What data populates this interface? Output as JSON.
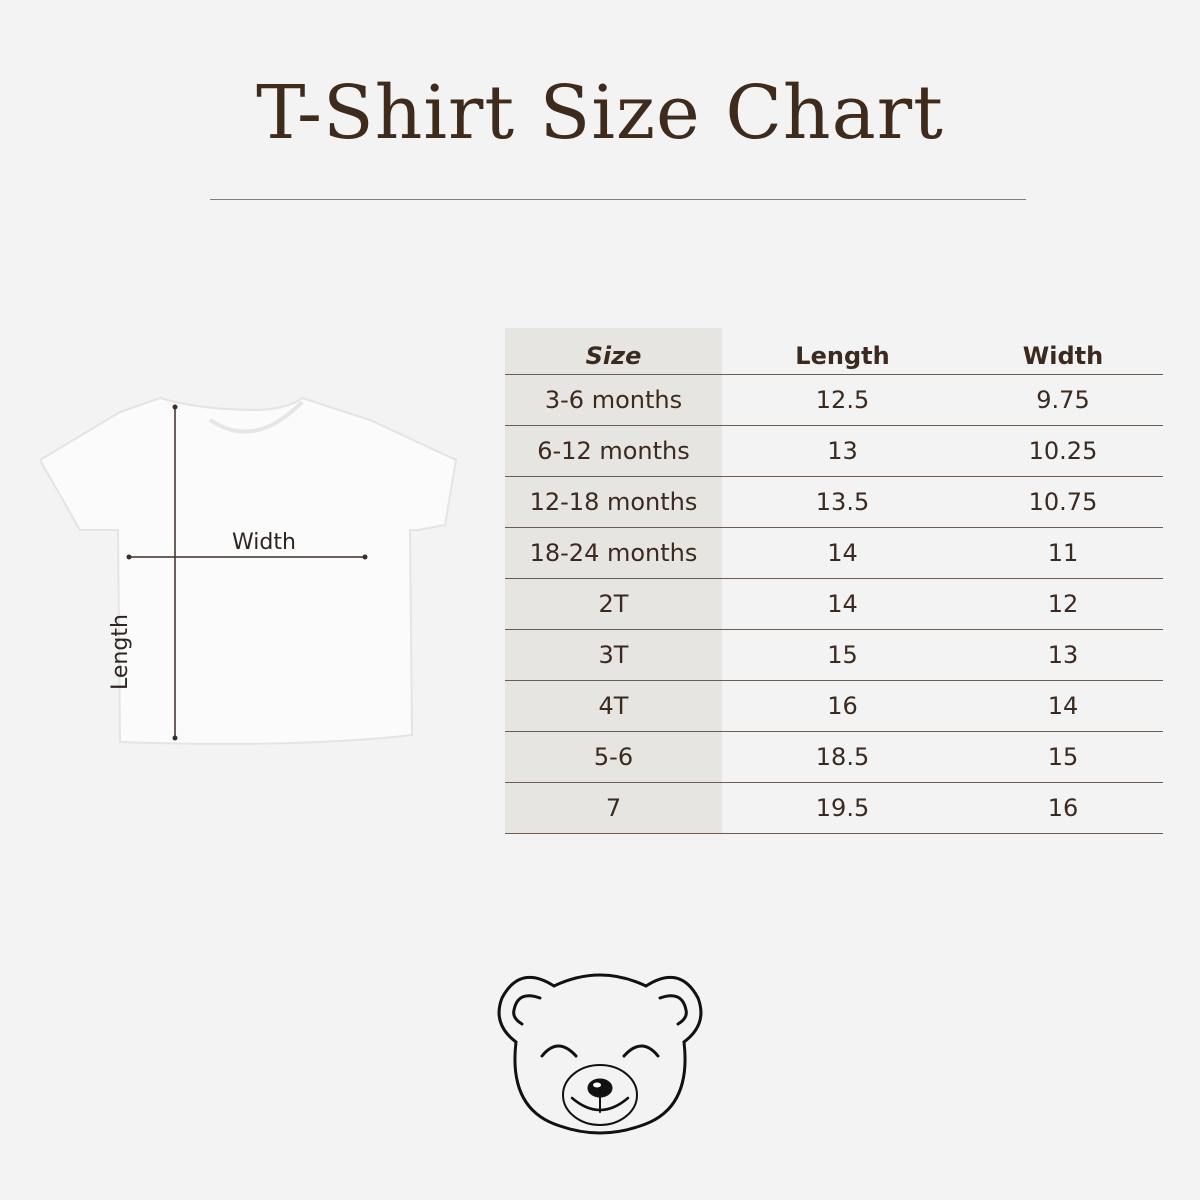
{
  "title": "T-Shirt Size Chart",
  "diagram": {
    "width_label": "Width",
    "length_label": "Length"
  },
  "table": {
    "headers": [
      "Size",
      "Length",
      "Width"
    ],
    "rows": [
      [
        "3-6 months",
        "12.5",
        "9.75"
      ],
      [
        "6-12 months",
        "13",
        "10.25"
      ],
      [
        "12-18 months",
        "13.5",
        "10.75"
      ],
      [
        "18-24 months",
        "14",
        "11"
      ],
      [
        "2T",
        "14",
        "12"
      ],
      [
        "3T",
        "15",
        "13"
      ],
      [
        "4T",
        "16",
        "14"
      ],
      [
        "5-6",
        "18.5",
        "15"
      ],
      [
        "7",
        "19.5",
        "16"
      ]
    ]
  },
  "colors": {
    "background": "#f3f3f3",
    "text": "#3f2b1c",
    "size_column": "#e7e5e1"
  },
  "icons": [
    "tshirt-image",
    "bear-face-icon"
  ]
}
